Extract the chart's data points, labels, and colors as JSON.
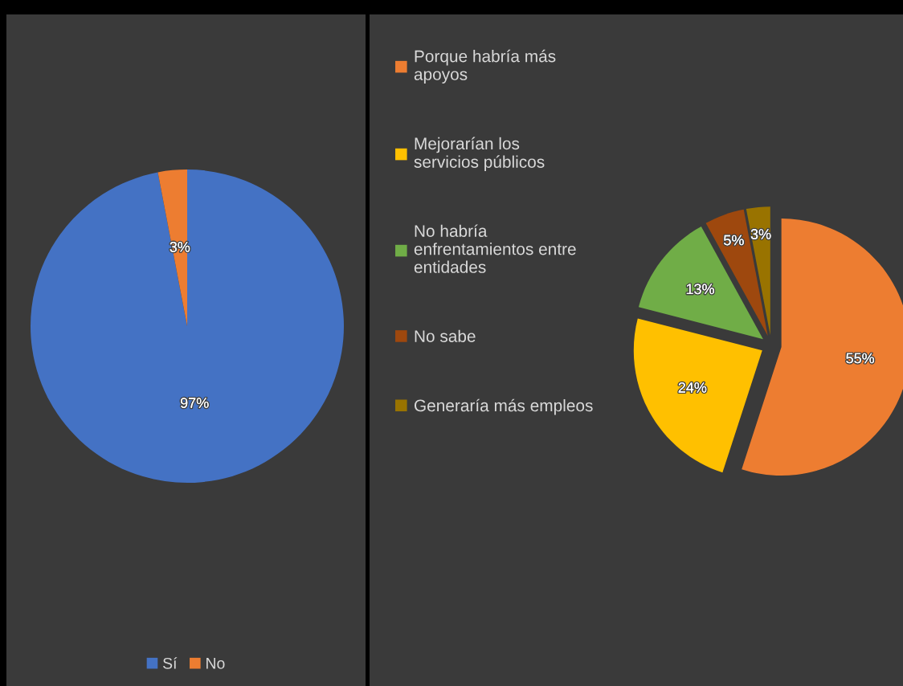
{
  "chart_data": [
    {
      "type": "pie",
      "categories": [
        "Sí",
        "No"
      ],
      "values": [
        97,
        3
      ],
      "colors": [
        "#4472c4",
        "#ed7d31"
      ],
      "value_labels": [
        "97%",
        "3%"
      ],
      "legend": "bottom"
    },
    {
      "type": "pie",
      "categories": [
        "Porque habría más apoyos",
        "Mejorarían los servicios públicos",
        "No habría enfrentamientos entre entidades",
        "No sabe",
        "Generaría más empleos"
      ],
      "values": [
        55,
        24,
        13,
        5,
        3
      ],
      "colors": [
        "#ed7d31",
        "#ffc000",
        "#70ad47",
        "#9e480e",
        "#997300"
      ],
      "value_labels": [
        "55%",
        "24%",
        "13%",
        "5%",
        "3%"
      ],
      "legend": "left"
    }
  ]
}
